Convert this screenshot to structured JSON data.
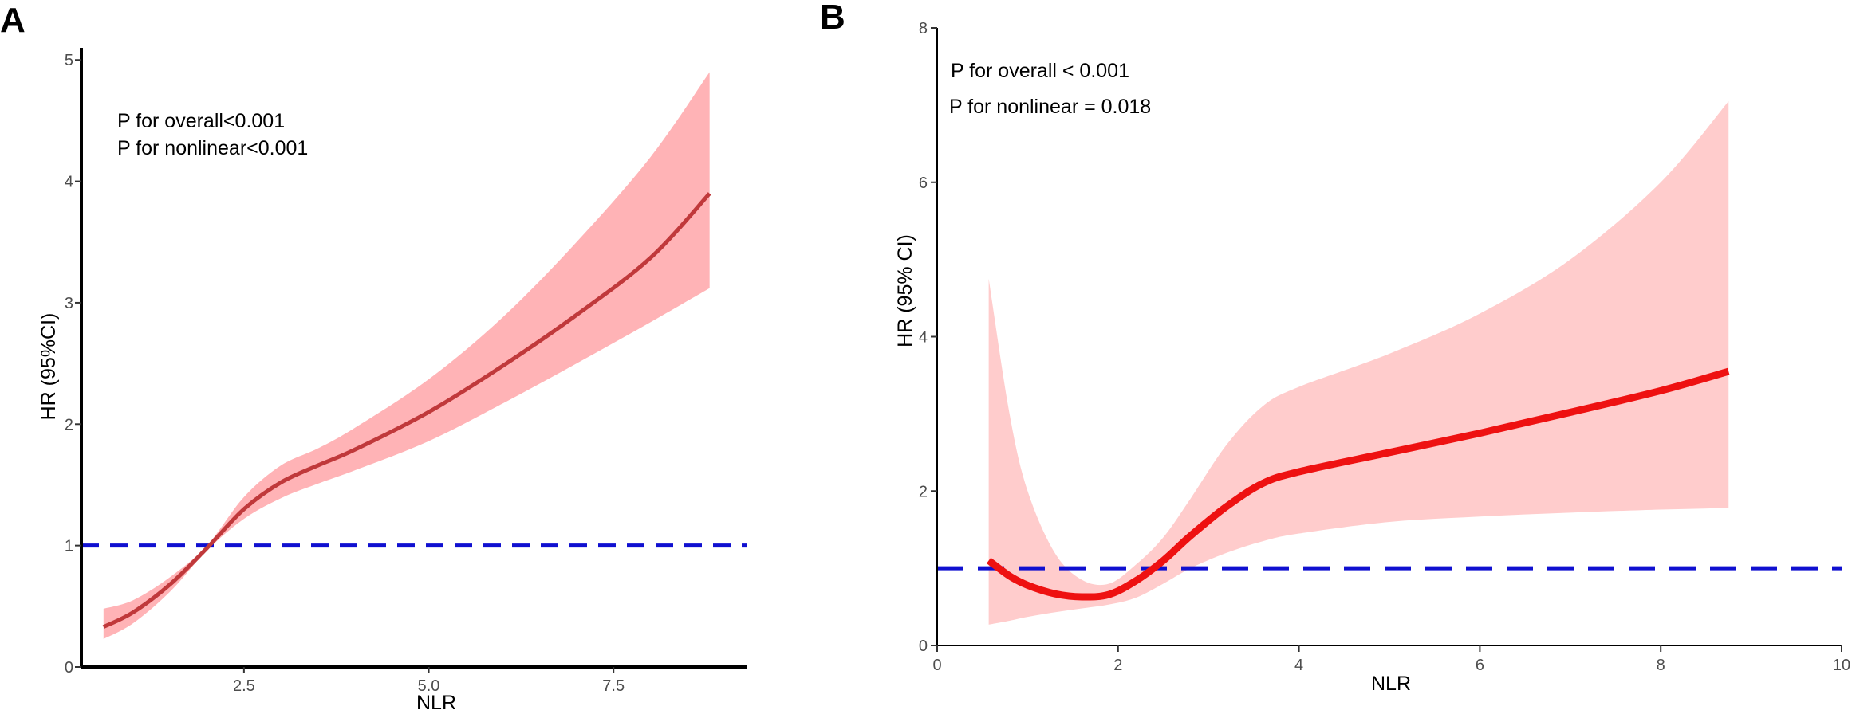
{
  "chart_data": [
    {
      "type": "line",
      "panel_label": "A",
      "xlabel": "NLR",
      "ylabel": "HR (95%CI)",
      "xlim": [
        0.3,
        9.3
      ],
      "ylim": [
        0,
        5.1
      ],
      "xticks": [
        2.5,
        5.0,
        7.5
      ],
      "xtick_labels": [
        "2.5",
        "5.0",
        "7.5"
      ],
      "yticks": [
        0,
        1,
        2,
        3,
        4,
        5
      ],
      "ytick_labels": [
        "0",
        "1",
        "2",
        "3",
        "4",
        "5"
      ],
      "reference_line": 1,
      "annotations": [
        "P for overall<0.001",
        "P for nonlinear<0.001"
      ],
      "colors": {
        "line": "#c0393b",
        "band": "#ffb3b6",
        "reference": "#1010d0"
      },
      "series": [
        {
          "name": "HR",
          "x": [
            0.6,
            1.0,
            1.5,
            2.0,
            2.5,
            3.0,
            3.5,
            4.0,
            5.0,
            6.0,
            7.0,
            8.0,
            8.8
          ],
          "y": [
            0.33,
            0.45,
            0.68,
            0.98,
            1.3,
            1.52,
            1.66,
            1.79,
            2.1,
            2.48,
            2.9,
            3.37,
            3.9
          ],
          "lower": [
            0.23,
            0.36,
            0.62,
            0.96,
            1.22,
            1.39,
            1.51,
            1.62,
            1.86,
            2.17,
            2.5,
            2.84,
            3.12
          ],
          "upper": [
            0.48,
            0.55,
            0.74,
            1.0,
            1.4,
            1.66,
            1.8,
            1.97,
            2.37,
            2.88,
            3.5,
            4.2,
            4.9
          ]
        }
      ]
    },
    {
      "type": "line",
      "panel_label": "B",
      "xlabel": "NLR",
      "ylabel": "HR (95% CI)",
      "xlim": [
        0,
        10
      ],
      "ylim": [
        0,
        8
      ],
      "xticks": [
        0,
        2,
        4,
        6,
        8,
        10
      ],
      "xtick_labels": [
        "0",
        "2",
        "4",
        "6",
        "8",
        "10"
      ],
      "yticks": [
        0,
        2,
        4,
        6,
        8
      ],
      "ytick_labels": [
        "0",
        "2",
        "4",
        "6",
        "8"
      ],
      "reference_line": 1,
      "annotations": [
        "P for overall < 0.001",
        "P for nonlinear = 0.018"
      ],
      "colors": {
        "line": "#ee1111",
        "band": "#ffcccc",
        "reference": "#1010d0"
      },
      "series": [
        {
          "name": "HR",
          "x": [
            0.57,
            0.8,
            1.0,
            1.3,
            1.6,
            1.9,
            2.2,
            2.5,
            2.8,
            3.2,
            3.6,
            4.0,
            5.0,
            6.0,
            7.0,
            8.0,
            8.75
          ],
          "y": [
            1.1,
            0.9,
            0.78,
            0.67,
            0.63,
            0.66,
            0.84,
            1.1,
            1.42,
            1.8,
            2.1,
            2.25,
            2.5,
            2.75,
            3.02,
            3.3,
            3.55
          ],
          "lower": [
            0.27,
            0.32,
            0.37,
            0.43,
            0.48,
            0.53,
            0.62,
            0.8,
            1.0,
            1.2,
            1.35,
            1.45,
            1.6,
            1.67,
            1.72,
            1.76,
            1.78
          ],
          "upper": [
            4.75,
            3.0,
            2.0,
            1.2,
            0.85,
            0.8,
            1.05,
            1.4,
            1.9,
            2.6,
            3.1,
            3.35,
            3.78,
            4.3,
            5.0,
            6.0,
            7.05
          ]
        }
      ]
    }
  ]
}
